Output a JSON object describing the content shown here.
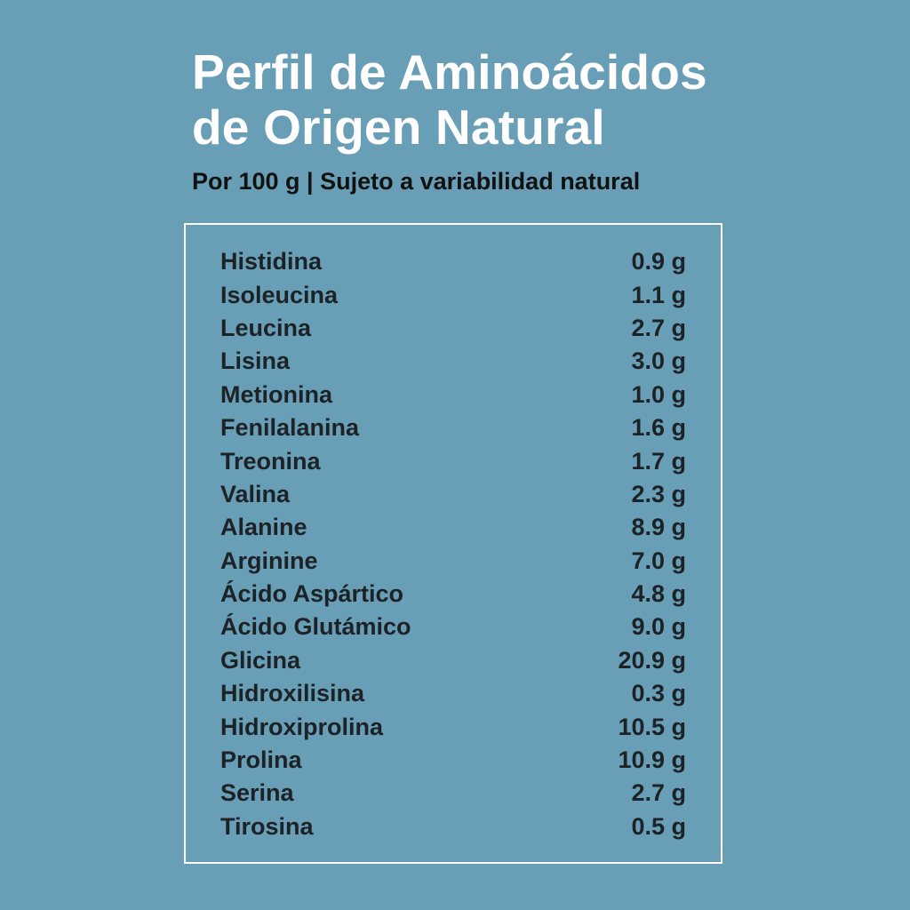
{
  "header": {
    "title_line1": "Perfil de Aminoácidos",
    "title_line2": "de Origen Natural",
    "subtitle": "Por 100 g | Sujeto a variabilidad natural"
  },
  "table": {
    "rows": [
      {
        "name": "Histidina",
        "amount": "0.9 g"
      },
      {
        "name": "Isoleucina",
        "amount": "1.1 g"
      },
      {
        "name": "Leucina",
        "amount": "2.7 g"
      },
      {
        "name": "Lisina",
        "amount": "3.0 g"
      },
      {
        "name": "Metionina",
        "amount": "1.0 g"
      },
      {
        "name": "Fenilalanina",
        "amount": "1.6 g"
      },
      {
        "name": "Treonina",
        "amount": "1.7 g"
      },
      {
        "name": "Valina",
        "amount": "2.3 g"
      },
      {
        "name": "Alanine",
        "amount": "8.9 g"
      },
      {
        "name": "Arginine",
        "amount": "7.0 g"
      },
      {
        "name": "Ácido Aspártico",
        "amount": "4.8 g"
      },
      {
        "name": "Ácido Glutámico",
        "amount": "9.0 g"
      },
      {
        "name": "Glicina",
        "amount": "20.9 g"
      },
      {
        "name": "Hidroxilisina",
        "amount": "0.3 g"
      },
      {
        "name": "Hidroxiprolina",
        "amount": "10.5 g"
      },
      {
        "name": "Prolina",
        "amount": "10.9 g"
      },
      {
        "name": "Serina",
        "amount": "2.7 g"
      },
      {
        "name": "Tirosina",
        "amount": "0.5 g"
      }
    ]
  },
  "colors": {
    "background": "#689fb6",
    "title": "#ffffff",
    "text": "#1c2226",
    "border": "#ffffff"
  }
}
